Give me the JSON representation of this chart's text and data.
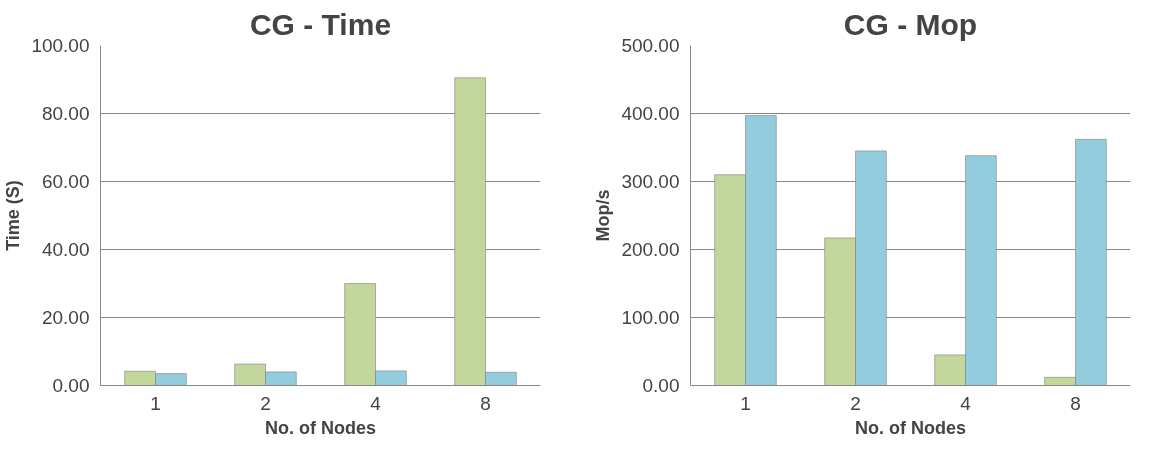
{
  "chart_data": [
    {
      "type": "bar",
      "title": "CG - Time",
      "xlabel": "No. of Nodes",
      "ylabel": "Time (S)",
      "categories": [
        "1",
        "2",
        "4",
        "8"
      ],
      "series": [
        {
          "color": "#c3d69b",
          "values": [
            4.2,
            6.3,
            30,
            90.5
          ]
        },
        {
          "color": "#93cddd",
          "values": [
            3.5,
            4.0,
            4.3,
            3.9
          ]
        }
      ],
      "ylim": [
        0,
        100
      ],
      "yticks": [
        {
          "value": 0,
          "label": "0.00"
        },
        {
          "value": 20,
          "label": "20.00"
        },
        {
          "value": 40,
          "label": "40.00"
        },
        {
          "value": 60,
          "label": "60.00"
        },
        {
          "value": 80,
          "label": "80.00"
        },
        {
          "value": 100,
          "label": "100.00"
        }
      ],
      "grid": "y"
    },
    {
      "type": "bar",
      "title": "CG - Mop",
      "xlabel": "No. of Nodes",
      "ylabel": "Mop/s",
      "categories": [
        "1",
        "2",
        "4",
        "8"
      ],
      "series": [
        {
          "color": "#c3d69b",
          "values": [
            310,
            217,
            45,
            12
          ]
        },
        {
          "color": "#93cddd",
          "values": [
            397,
            345,
            338,
            362
          ]
        }
      ],
      "ylim": [
        0,
        500
      ],
      "yticks": [
        {
          "value": 0,
          "label": "0.00"
        },
        {
          "value": 100,
          "label": "100.00"
        },
        {
          "value": 200,
          "label": "200.00"
        },
        {
          "value": 300,
          "label": "300.00"
        },
        {
          "value": 400,
          "label": "400.00"
        },
        {
          "value": 500,
          "label": "500.00"
        }
      ],
      "grid": "y"
    }
  ]
}
